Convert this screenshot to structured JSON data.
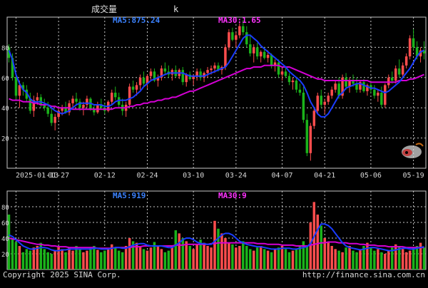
{
  "header": {
    "title": "成交量",
    "mark": "k"
  },
  "colors": {
    "background": "#000000",
    "grid": "#c8c8c8",
    "up": "#ff4d4d",
    "down": "#1bb31b",
    "ma5": "#1a3cff",
    "ma30": "#d400d4",
    "axis_text": "#d8d8d8",
    "label_ma5": "#3b82ff",
    "label_ma30": "#ff33ff"
  },
  "footer": {
    "copyright": "Copyright 2025 SINA Corp.",
    "url": "http://finance.sina.com.cn"
  },
  "chart_data": [
    {
      "type": "candlestick",
      "title": "",
      "legend": [
        {
          "name": "MA5",
          "text": "MA5:875.24",
          "color": "#3b82ff"
        },
        {
          "name": "MA30",
          "text": "MA30:1.65",
          "color": "#ff33ff"
        }
      ],
      "x_ticks": [
        "2025-01-13",
        "01-27",
        "02-12",
        "02-24",
        "03-10",
        "03-24",
        "04-07",
        "04-21",
        "05-06",
        "05-19"
      ],
      "ylim": [
        0,
        100
      ],
      "y_ticks": [
        20,
        40,
        60,
        80
      ],
      "grid": true,
      "candles": [
        [
          80,
          82,
          70,
          73
        ],
        [
          73,
          76,
          58,
          60
        ],
        [
          60,
          62,
          45,
          48
        ],
        [
          48,
          58,
          40,
          55
        ],
        [
          55,
          57,
          48,
          52
        ],
        [
          52,
          55,
          44,
          46
        ],
        [
          46,
          50,
          36,
          38
        ],
        [
          38,
          48,
          34,
          45
        ],
        [
          45,
          50,
          42,
          47
        ],
        [
          47,
          49,
          40,
          42
        ],
        [
          42,
          46,
          38,
          40
        ],
        [
          40,
          44,
          34,
          36
        ],
        [
          36,
          40,
          28,
          30
        ],
        [
          30,
          36,
          25,
          34
        ],
        [
          34,
          40,
          32,
          38
        ],
        [
          38,
          42,
          35,
          40
        ],
        [
          40,
          44,
          36,
          37
        ],
        [
          37,
          45,
          35,
          43
        ],
        [
          43,
          48,
          40,
          46
        ],
        [
          46,
          50,
          42,
          44
        ],
        [
          44,
          46,
          38,
          40
        ],
        [
          40,
          44,
          35,
          42
        ],
        [
          42,
          48,
          40,
          46
        ],
        [
          46,
          47,
          38,
          39
        ],
        [
          39,
          42,
          35,
          37
        ],
        [
          37,
          44,
          36,
          42
        ],
        [
          42,
          46,
          39,
          40
        ],
        [
          40,
          43,
          36,
          38
        ],
        [
          38,
          45,
          37,
          44
        ],
        [
          44,
          52,
          42,
          50
        ],
        [
          50,
          54,
          45,
          47
        ],
        [
          47,
          50,
          40,
          42
        ],
        [
          42,
          46,
          35,
          38
        ],
        [
          38,
          44,
          34,
          42
        ],
        [
          42,
          56,
          40,
          54
        ],
        [
          54,
          58,
          50,
          52
        ],
        [
          52,
          57,
          48,
          55
        ],
        [
          55,
          62,
          52,
          60
        ],
        [
          60,
          64,
          54,
          56
        ],
        [
          56,
          62,
          53,
          61
        ],
        [
          61,
          66,
          58,
          64
        ],
        [
          64,
          66,
          57,
          58
        ],
        [
          58,
          62,
          54,
          60
        ],
        [
          60,
          68,
          58,
          66
        ],
        [
          66,
          70,
          62,
          64
        ],
        [
          64,
          68,
          60,
          62
        ],
        [
          62,
          66,
          58,
          65
        ],
        [
          65,
          68,
          60,
          61
        ],
        [
          61,
          66,
          59,
          65
        ],
        [
          65,
          67,
          55,
          57
        ],
        [
          57,
          63,
          54,
          62
        ],
        [
          62,
          64,
          58,
          59
        ],
        [
          59,
          62,
          55,
          61
        ],
        [
          61,
          66,
          58,
          64
        ],
        [
          64,
          66,
          58,
          60
        ],
        [
          60,
          64,
          57,
          63
        ],
        [
          63,
          67,
          60,
          65
        ],
        [
          65,
          68,
          62,
          66
        ],
        [
          66,
          70,
          63,
          68
        ],
        [
          68,
          70,
          64,
          65
        ],
        [
          65,
          68,
          62,
          67
        ],
        [
          67,
          82,
          65,
          80
        ],
        [
          80,
          92,
          78,
          90
        ],
        [
          90,
          93,
          84,
          85
        ],
        [
          85,
          90,
          80,
          88
        ],
        [
          88,
          96,
          86,
          94
        ],
        [
          94,
          98,
          88,
          90
        ],
        [
          90,
          94,
          80,
          82
        ],
        [
          82,
          88,
          74,
          76
        ],
        [
          76,
          82,
          70,
          80
        ],
        [
          80,
          83,
          72,
          74
        ],
        [
          74,
          78,
          70,
          77
        ],
        [
          77,
          80,
          72,
          73
        ],
        [
          73,
          78,
          70,
          75
        ],
        [
          75,
          76,
          66,
          68
        ],
        [
          68,
          72,
          64,
          70
        ],
        [
          70,
          72,
          60,
          62
        ],
        [
          62,
          66,
          58,
          64
        ],
        [
          64,
          67,
          60,
          61
        ],
        [
          61,
          63,
          55,
          57
        ],
        [
          57,
          60,
          52,
          58
        ],
        [
          58,
          60,
          50,
          52
        ],
        [
          52,
          56,
          48,
          50
        ],
        [
          50,
          54,
          30,
          32
        ],
        [
          32,
          36,
          8,
          10
        ],
        [
          10,
          30,
          5,
          28
        ],
        [
          28,
          40,
          26,
          38
        ],
        [
          38,
          50,
          36,
          48
        ],
        [
          48,
          52,
          40,
          42
        ],
        [
          42,
          46,
          36,
          44
        ],
        [
          44,
          50,
          42,
          48
        ],
        [
          48,
          54,
          46,
          52
        ],
        [
          52,
          58,
          50,
          56
        ],
        [
          56,
          60,
          46,
          48
        ],
        [
          48,
          62,
          46,
          60
        ],
        [
          60,
          63,
          52,
          54
        ],
        [
          54,
          60,
          50,
          58
        ],
        [
          58,
          62,
          54,
          56
        ],
        [
          56,
          60,
          50,
          52
        ],
        [
          52,
          58,
          50,
          57
        ],
        [
          57,
          59,
          50,
          51
        ],
        [
          51,
          56,
          48,
          55
        ],
        [
          55,
          58,
          50,
          52
        ],
        [
          52,
          55,
          46,
          48
        ],
        [
          48,
          52,
          44,
          50
        ],
        [
          50,
          54,
          40,
          42
        ],
        [
          42,
          56,
          40,
          55
        ],
        [
          55,
          62,
          53,
          60
        ],
        [
          60,
          64,
          56,
          58
        ],
        [
          58,
          68,
          56,
          66
        ],
        [
          66,
          72,
          60,
          62
        ],
        [
          62,
          70,
          60,
          68
        ],
        [
          68,
          76,
          66,
          74
        ],
        [
          74,
          88,
          72,
          86
        ],
        [
          86,
          92,
          78,
          80
        ],
        [
          80,
          84,
          72,
          74
        ],
        [
          74,
          80,
          70,
          78
        ],
        [
          78,
          84,
          72,
          76
        ]
      ],
      "ma5": [
        78,
        72,
        62,
        56,
        52,
        50,
        46,
        44,
        44,
        44,
        43,
        42,
        40,
        38,
        37,
        36,
        37,
        38,
        40,
        42,
        43,
        43,
        43,
        43,
        42,
        42,
        42,
        41,
        41,
        42,
        44,
        45,
        45,
        45,
        46,
        47,
        49,
        51,
        54,
        56,
        58,
        59,
        60,
        61,
        62,
        63,
        63,
        63,
        63,
        63,
        62,
        61,
        61,
        61,
        61,
        61,
        62,
        63,
        64,
        65,
        66,
        67,
        70,
        74,
        78,
        82,
        86,
        88,
        88,
        86,
        84,
        81,
        79,
        77,
        75,
        73,
        71,
        69,
        67,
        64,
        62,
        60,
        58,
        55,
        50,
        44,
        40,
        36,
        34,
        34,
        36,
        40,
        44,
        48,
        50,
        53,
        54,
        55,
        56,
        56,
        55,
        54,
        53,
        53,
        52,
        51,
        50,
        51,
        53,
        55,
        57,
        60,
        63,
        66,
        70,
        74,
        77,
        78
      ],
      "ma30": [
        46,
        45,
        45,
        45,
        44,
        44,
        44,
        43,
        43,
        42,
        42,
        42,
        41,
        41,
        40,
        40,
        40,
        40,
        39,
        39,
        39,
        39,
        39,
        39,
        39,
        39,
        39,
        39,
        39,
        39,
        40,
        40,
        40,
        40,
        41,
        41,
        42,
        42,
        43,
        43,
        44,
        44,
        45,
        45,
        46,
        46,
        47,
        47,
        48,
        49,
        50,
        51,
        51,
        52,
        53,
        54,
        55,
        56,
        57,
        58,
        59,
        60,
        61,
        62,
        63,
        64,
        65,
        66,
        66,
        67,
        67,
        67,
        68,
        68,
        68,
        68,
        68,
        67,
        67,
        67,
        66,
        65,
        64,
        63,
        62,
        61,
        60,
        59,
        59,
        58,
        58,
        58,
        58,
        58,
        58,
        58,
        58,
        58,
        58,
        58,
        58,
        58,
        57,
        57,
        57,
        57,
        57,
        57,
        57,
        57,
        58,
        58,
        58,
        59,
        59,
        60,
        61,
        62
      ]
    },
    {
      "type": "bar",
      "title": "",
      "legend": [
        {
          "name": "MA5",
          "text": "MA5:919",
          "color": "#3b82ff"
        },
        {
          "name": "MA30",
          "text": "MA30:9",
          "color": "#ff33ff"
        }
      ],
      "ylim": [
        0,
        100
      ],
      "y_ticks": [
        20,
        40,
        60,
        80
      ],
      "grid": true,
      "volumes": [
        70,
        40,
        35,
        30,
        22,
        26,
        24,
        28,
        30,
        34,
        26,
        22,
        20,
        24,
        30,
        26,
        22,
        28,
        24,
        30,
        26,
        22,
        24,
        28,
        30,
        25,
        22,
        24,
        26,
        32,
        28,
        24,
        22,
        30,
        40,
        36,
        34,
        30,
        26,
        24,
        28,
        35,
        30,
        26,
        22,
        24,
        30,
        50,
        46,
        40,
        36,
        30,
        26,
        32,
        38,
        34,
        30,
        28,
        62,
        52,
        46,
        40,
        34,
        32,
        28,
        30,
        36,
        30,
        26,
        24,
        28,
        30,
        26,
        24,
        22,
        26,
        28,
        30,
        26,
        22,
        24,
        26,
        30,
        36,
        30,
        60,
        86,
        70,
        56,
        40,
        34,
        30,
        26,
        24,
        22,
        28,
        30,
        24,
        22,
        26,
        30,
        34,
        28,
        24,
        26,
        22,
        20,
        24,
        28,
        32,
        30,
        26,
        22,
        24,
        28,
        30,
        34,
        28
      ],
      "ma5": [
        44,
        42,
        38,
        34,
        30,
        28,
        26,
        26,
        27,
        28,
        28,
        27,
        25,
        24,
        24,
        25,
        25,
        26,
        26,
        26,
        26,
        26,
        26,
        26,
        27,
        27,
        26,
        26,
        26,
        27,
        28,
        28,
        27,
        27,
        29,
        31,
        32,
        33,
        33,
        31,
        30,
        30,
        30,
        30,
        29,
        28,
        28,
        31,
        34,
        38,
        40,
        40,
        38,
        35,
        33,
        33,
        32,
        32,
        36,
        40,
        44,
        46,
        46,
        44,
        40,
        36,
        34,
        32,
        31,
        30,
        29,
        29,
        28,
        27,
        26,
        26,
        26,
        27,
        27,
        27,
        26,
        26,
        27,
        28,
        29,
        33,
        42,
        51,
        58,
        58,
        56,
        52,
        46,
        40,
        34,
        30,
        28,
        27,
        26,
        25,
        26,
        27,
        28,
        28,
        27,
        26,
        25,
        24,
        24,
        25,
        26,
        27,
        27,
        26,
        26,
        27,
        28,
        29
      ],
      "ma30": [
        40,
        39,
        38,
        37,
        36,
        35,
        34,
        33,
        32,
        32,
        31,
        31,
        30,
        30,
        29,
        29,
        29,
        28,
        28,
        28,
        28,
        28,
        28,
        28,
        28,
        27,
        27,
        27,
        27,
        27,
        28,
        28,
        28,
        28,
        28,
        29,
        29,
        29,
        30,
        30,
        30,
        30,
        30,
        30,
        30,
        30,
        30,
        31,
        31,
        31,
        32,
        32,
        32,
        32,
        32,
        32,
        32,
        33,
        33,
        34,
        34,
        34,
        34,
        34,
        34,
        34,
        34,
        34,
        34,
        34,
        33,
        33,
        33,
        32,
        32,
        32,
        32,
        31,
        31,
        31,
        31,
        30,
        30,
        30,
        30,
        31,
        32,
        33,
        34,
        34,
        35,
        35,
        35,
        34,
        34,
        34,
        33,
        33,
        33,
        32,
        32,
        31,
        31,
        31,
        30,
        30,
        30,
        29,
        29,
        29,
        29,
        29,
        28,
        28,
        28,
        28,
        28,
        28
      ]
    }
  ]
}
